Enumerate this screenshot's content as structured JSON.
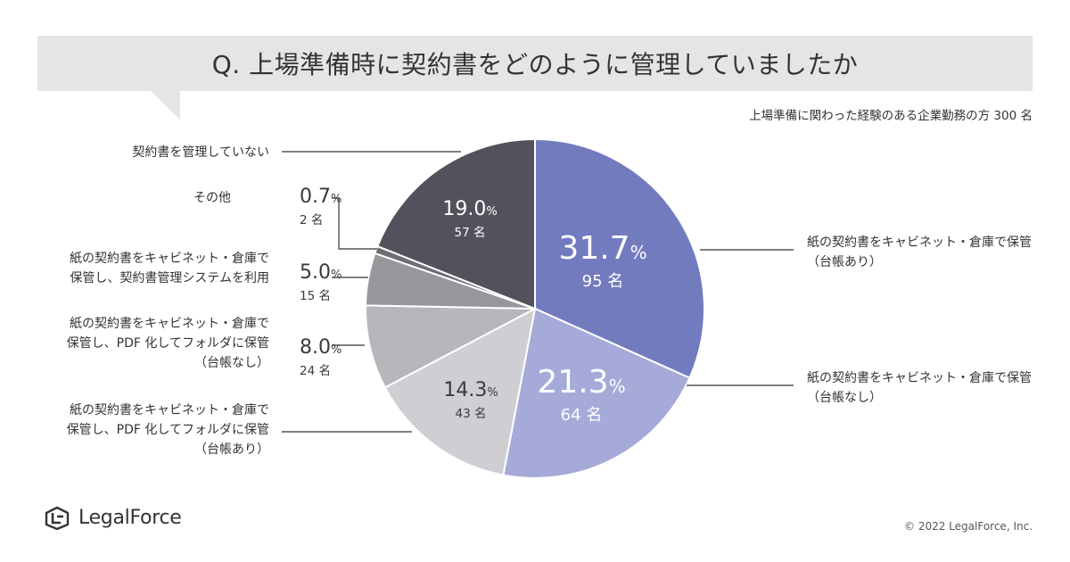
{
  "header": {
    "title": "Q. 上場準備時に契約書をどのように管理していましたか",
    "subtitle": "上場準備に関わった経験のある企業勤務の方 300 名"
  },
  "chart_data": {
    "type": "pie",
    "title": "Q. 上場準備時に契約書をどのように管理していましたか",
    "subtitle": "上場準備に関わった経験のある企業勤務の方 300 名",
    "slices": [
      {
        "label_lines": [
          "紙の契約書をキャビネット・倉庫で保管",
          "（台帳あり）"
        ],
        "value": 31.7,
        "value_text": "31.7",
        "unit": "%",
        "count_text": "95 名",
        "color": "#737bbf",
        "text_color": "#ffffff"
      },
      {
        "label_lines": [
          "紙の契約書をキャビネット・倉庫で保管",
          "（台帳なし）"
        ],
        "value": 21.3,
        "value_text": "21.3",
        "unit": "%",
        "count_text": "64 名",
        "color": "#a6aad9",
        "text_color": "#ffffff"
      },
      {
        "label_lines": [
          "紙の契約書をキャビネット・倉庫で",
          "保管し、PDF 化してフォルダに保管",
          "（台帳あり）"
        ],
        "value": 14.3,
        "value_text": "14.3",
        "unit": "%",
        "count_text": "43 名",
        "color": "#cfcfd3",
        "text_color": "#3a3a3a"
      },
      {
        "label_lines": [
          "紙の契約書をキャビネット・倉庫で",
          "保管し、PDF 化してフォルダに保管",
          "（台帳なし）"
        ],
        "value": 8.0,
        "value_text": "8.0",
        "unit": "%",
        "count_text": "24 名",
        "color": "#b7b7bb",
        "text_color": "#3a3a3a"
      },
      {
        "label_lines": [
          "紙の契約書をキャビネット・倉庫で",
          "保管し、契約書管理システムを利用"
        ],
        "value": 5.0,
        "value_text": "5.0",
        "unit": "%",
        "count_text": "15 名",
        "color": "#96969b",
        "text_color": "#3a3a3a"
      },
      {
        "label_lines": [
          "その他"
        ],
        "value": 0.7,
        "value_text": "0.7",
        "unit": "%",
        "count_text": "2 名",
        "color": "#6d6d75",
        "text_color": "#3a3a3a"
      },
      {
        "label_lines": [
          "契約書を管理していない"
        ],
        "value": 19.0,
        "value_text": "19.0",
        "unit": "%",
        "count_text": "57 名",
        "color": "#52525c",
        "text_color": "#ffffff"
      }
    ]
  },
  "footer": {
    "logo_text": "LegalForce",
    "copyright": "© 2022 LegalForce, Inc."
  },
  "colors": {
    "banner": "#e5e5e8",
    "text": "#333333"
  }
}
